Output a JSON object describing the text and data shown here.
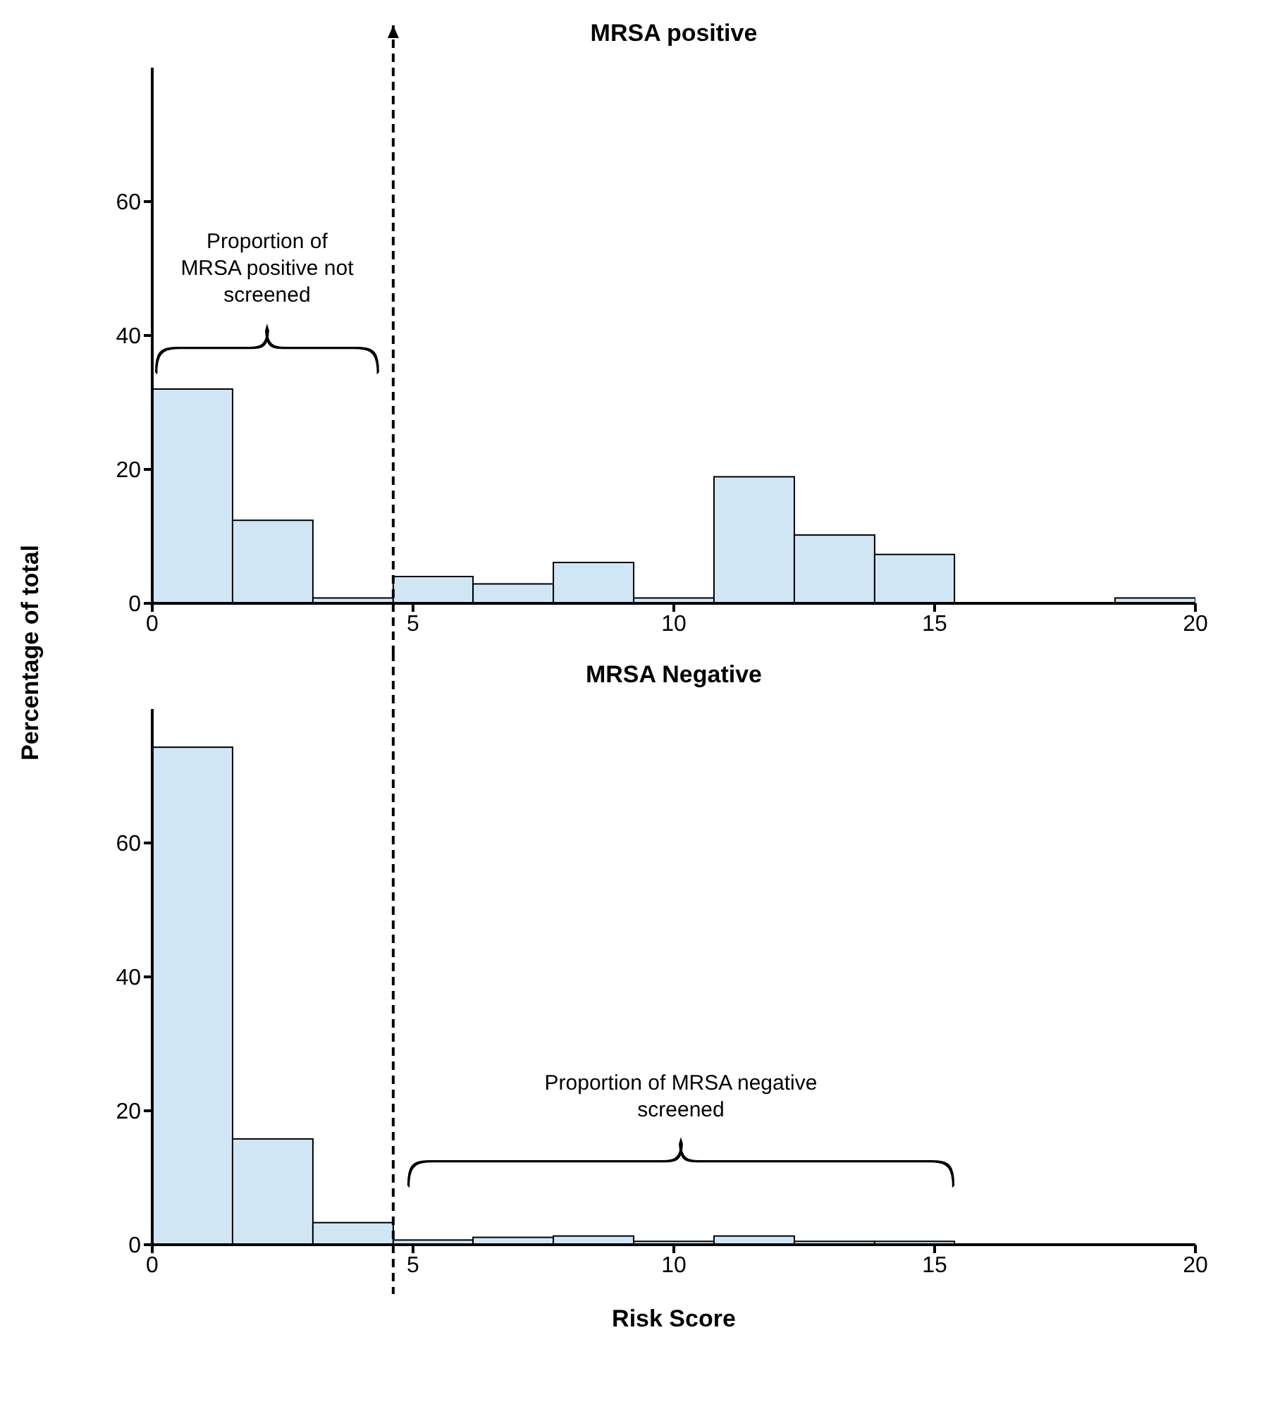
{
  "chart_data": [
    {
      "type": "histogram",
      "title": "MRSA positive",
      "ylabel": "Percentage of total",
      "color": "#d0e6f5",
      "bins": [
        0,
        1.54,
        3.08,
        4.62,
        6.15,
        7.69,
        9.23,
        10.77,
        12.31,
        13.85,
        15.38,
        18.46,
        20
      ],
      "values": [
        32,
        12.4,
        0.8,
        4.0,
        2.9,
        6.1,
        0.8,
        18.9,
        10.2,
        7.3,
        0,
        0.8
      ],
      "xlim": [
        0,
        20
      ],
      "xticks": [
        0,
        5,
        10,
        15,
        20
      ],
      "ylim": [
        0,
        80
      ],
      "yticks": [
        0,
        20,
        40,
        60
      ],
      "grid": false,
      "legend": false,
      "ref_lines": [
        {
          "axis": "x",
          "value": 4.62,
          "line_style": "dashed",
          "color": "#000000"
        }
      ],
      "annotations": [
        "Proportion of MRSA positive not screened"
      ]
    },
    {
      "type": "histogram",
      "title": "MRSA Negative",
      "xlabel": "Risk Score",
      "color": "#d0e6f5",
      "bins": [
        0,
        1.54,
        3.08,
        4.62,
        6.15,
        7.69,
        9.23,
        10.77,
        12.31,
        13.85,
        15.38
      ],
      "values": [
        74.3,
        15.8,
        3.3,
        0.7,
        1.1,
        1.3,
        0.5,
        1.3,
        0.5,
        0.5
      ],
      "xlim": [
        0,
        20
      ],
      "xticks": [
        0,
        5,
        10,
        15,
        20
      ],
      "ylim": [
        0,
        80
      ],
      "yticks": [
        0,
        20,
        40,
        60
      ],
      "grid": false,
      "legend": false,
      "ref_lines": [
        {
          "axis": "x",
          "value": 4.62,
          "line_style": "dashed",
          "color": "#000000"
        }
      ],
      "annotations": [
        "Proportion of MRSA negative screened"
      ]
    }
  ]
}
